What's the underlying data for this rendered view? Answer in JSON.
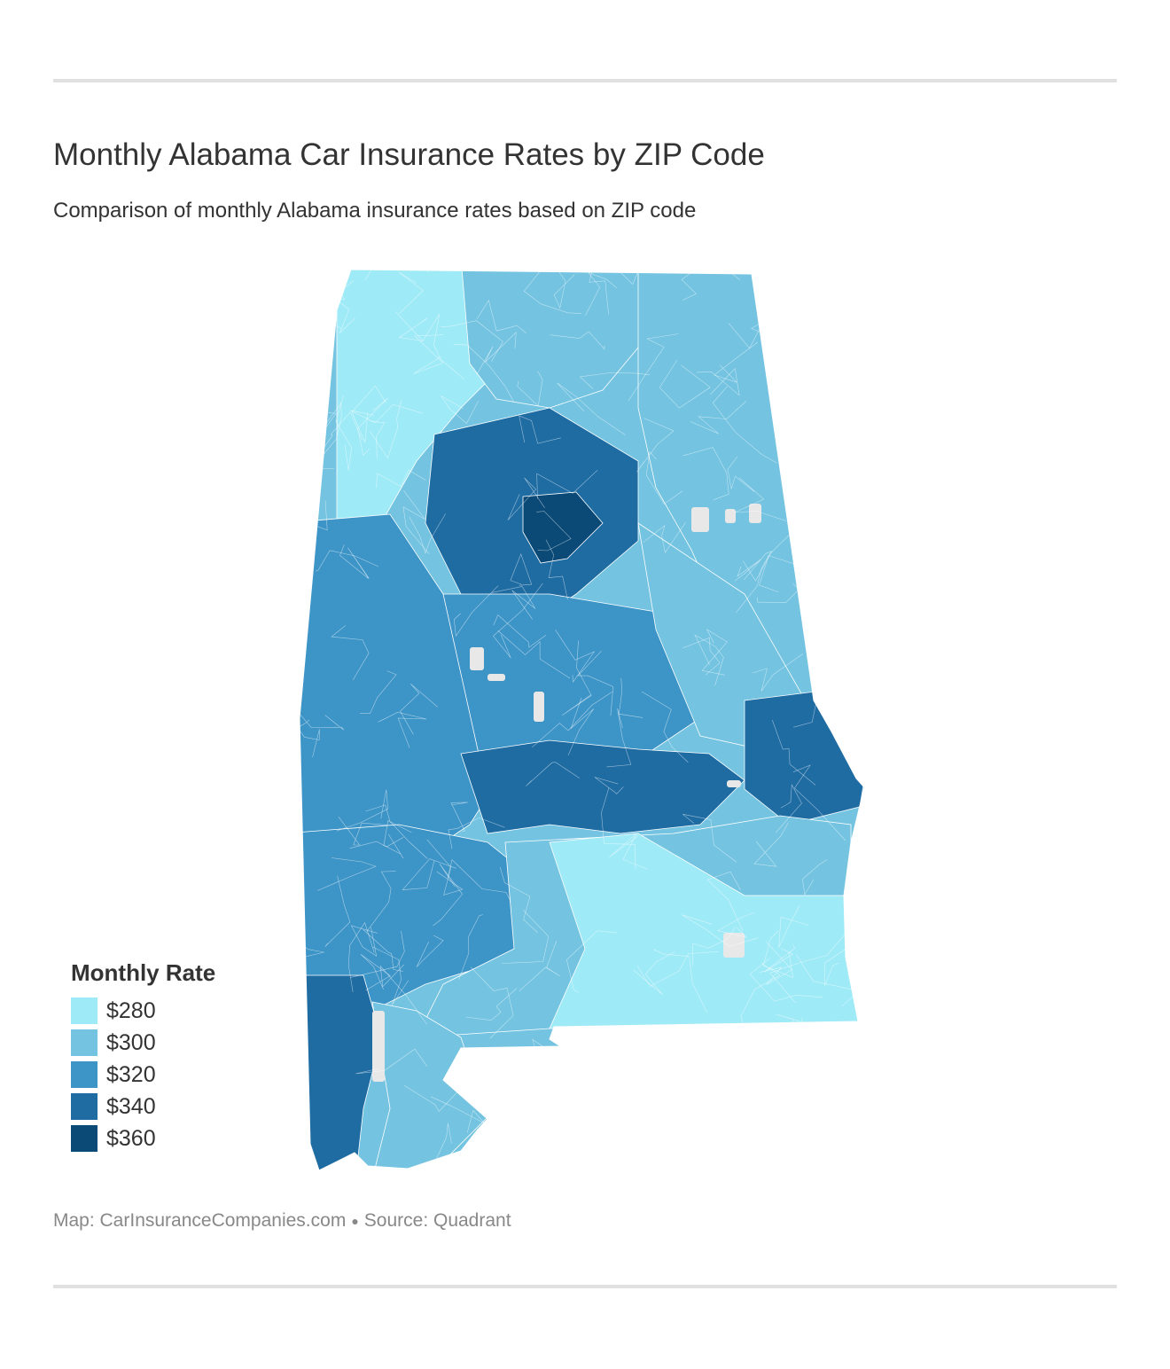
{
  "header": {
    "title": "Monthly Alabama Car Insurance Rates by ZIP Code",
    "subtitle": "Comparison of monthly Alabama insurance rates based on ZIP code"
  },
  "legend": {
    "title": "Monthly Rate",
    "items": [
      {
        "label": "$280",
        "color": "#9feaf7"
      },
      {
        "label": "$300",
        "color": "#73c3e1"
      },
      {
        "label": "$320",
        "color": "#3d94c7"
      },
      {
        "label": "$340",
        "color": "#1f6ca3"
      },
      {
        "label": "$360",
        "color": "#0b4a77"
      }
    ]
  },
  "footer": {
    "map_credit": "Map: CarInsuranceCompanies.com",
    "source": "Source: Quadrant"
  },
  "map": {
    "region": "Alabama",
    "no_data_color": "#e8e8e8",
    "regions": [
      {
        "name": "north-west",
        "rate": 280
      },
      {
        "name": "north-central",
        "rate": 300
      },
      {
        "name": "north-east",
        "rate": 300
      },
      {
        "name": "birmingham-metro",
        "rate": 340
      },
      {
        "name": "birmingham-core",
        "rate": 360
      },
      {
        "name": "west-central",
        "rate": 320
      },
      {
        "name": "central",
        "rate": 320
      },
      {
        "name": "east-central",
        "rate": 300
      },
      {
        "name": "montgomery-belt",
        "rate": 340
      },
      {
        "name": "phenix-city",
        "rate": 340
      },
      {
        "name": "south-west",
        "rate": 320
      },
      {
        "name": "south-central",
        "rate": 300
      },
      {
        "name": "wiregrass",
        "rate": 280
      },
      {
        "name": "mobile",
        "rate": 340
      },
      {
        "name": "baldwin",
        "rate": 300
      }
    ]
  }
}
